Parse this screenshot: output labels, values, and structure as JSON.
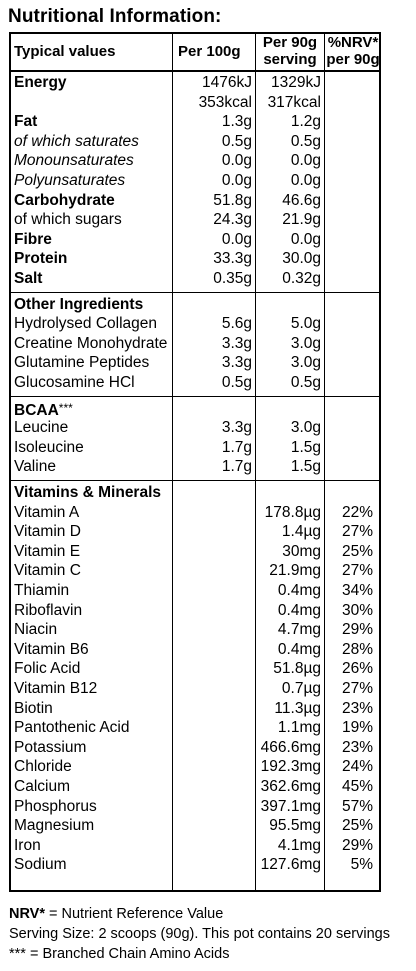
{
  "title": "Nutritional Information:",
  "headers": {
    "typical": "Typical values",
    "per100_line1": "Per 100g",
    "serving_line1": "Per 90g",
    "serving_line2": "serving",
    "nrv_line1": "%NRV*",
    "nrv_line2": "per 90g"
  },
  "macros": [
    {
      "label": "Energy",
      "per100": "1476kJ",
      "serving": "1329kJ",
      "style": "bold"
    },
    {
      "label": "",
      "per100": "353kcal",
      "serving": "317kcal",
      "style": "normal"
    },
    {
      "label": "Fat",
      "per100": "1.3g",
      "serving": "1.2g",
      "style": "bold"
    },
    {
      "label": "of which saturates",
      "per100": "0.5g",
      "serving": "0.5g",
      "style": "italic"
    },
    {
      "label": "Monounsaturates",
      "per100": "0.0g",
      "serving": "0.0g",
      "style": "italic"
    },
    {
      "label": "Polyunsaturates",
      "per100": "0.0g",
      "serving": "0.0g",
      "style": "italic"
    },
    {
      "label": "Carbohydrate",
      "per100": "51.8g",
      "serving": "46.6g",
      "style": "bold"
    },
    {
      "label": "of which sugars",
      "per100": "24.3g",
      "serving": "21.9g",
      "style": "normal"
    },
    {
      "label": "Fibre",
      "per100": "0.0g",
      "serving": "0.0g",
      "style": "bold"
    },
    {
      "label": "Protein",
      "per100": "33.3g",
      "serving": "30.0g",
      "style": "bold"
    },
    {
      "label": "Salt",
      "per100": "0.35g",
      "serving": "0.32g",
      "style": "bold"
    }
  ],
  "other": {
    "heading": "Other Ingredients",
    "rows": [
      {
        "label": "Hydrolysed Collagen",
        "per100": "5.6g",
        "serving": "5.0g"
      },
      {
        "label": "Creatine Monohydrate",
        "per100": "3.3g",
        "serving": "3.0g"
      },
      {
        "label": "Glutamine Peptides",
        "per100": "3.3g",
        "serving": "3.0g"
      },
      {
        "label": "Glucosamine HCl",
        "per100": "0.5g",
        "serving": "0.5g"
      }
    ]
  },
  "bcaa": {
    "heading": "BCAA",
    "heading_suffix": "***",
    "rows": [
      {
        "label": "Leucine",
        "per100": "3.3g",
        "serving": "3.0g"
      },
      {
        "label": "Isoleucine",
        "per100": "1.7g",
        "serving": "1.5g"
      },
      {
        "label": "Valine",
        "per100": "1.7g",
        "serving": "1.5g"
      }
    ]
  },
  "vitamins": {
    "heading": "Vitamins & Minerals",
    "rows": [
      {
        "label": "Vitamin A",
        "serving": "178.8µg",
        "nrv": "22%"
      },
      {
        "label": "Vitamin D",
        "serving": "1.4µg",
        "nrv": "27%"
      },
      {
        "label": "Vitamin E",
        "serving": "30mg",
        "nrv": "25%"
      },
      {
        "label": "Vitamin C",
        "serving": "21.9mg",
        "nrv": "27%"
      },
      {
        "label": "Thiamin",
        "serving": "0.4mg",
        "nrv": "34%"
      },
      {
        "label": "Riboflavin",
        "serving": "0.4mg",
        "nrv": "30%"
      },
      {
        "label": "Niacin",
        "serving": "4.7mg",
        "nrv": "29%"
      },
      {
        "label": "Vitamin B6",
        "serving": "0.4mg",
        "nrv": "28%"
      },
      {
        "label": "Folic Acid",
        "serving": "51.8µg",
        "nrv": "26%"
      },
      {
        "label": "Vitamin B12",
        "serving": "0.7µg",
        "nrv": "27%"
      },
      {
        "label": "Biotin",
        "serving": "11.3µg",
        "nrv": "23%"
      },
      {
        "label": "Pantothenic Acid",
        "serving": "1.1mg",
        "nrv": "19%"
      },
      {
        "label": "Potassium",
        "serving": "466.6mg",
        "nrv": "23%"
      },
      {
        "label": "Chloride",
        "serving": "192.3mg",
        "nrv": "24%"
      },
      {
        "label": "Calcium",
        "serving": "362.6mg",
        "nrv": "45%"
      },
      {
        "label": "Phosphorus",
        "serving": "397.1mg",
        "nrv": "57%"
      },
      {
        "label": "Magnesium",
        "serving": "95.5mg",
        "nrv": "25%"
      },
      {
        "label": "Iron",
        "serving": "4.1mg",
        "nrv": "29%"
      },
      {
        "label": "Sodium",
        "serving": "127.6mg",
        "nrv": "5%"
      }
    ]
  },
  "footer": {
    "nrv_term": "NRV*",
    "nrv_def": " = Nutrient Reference Value",
    "serving_note": "Serving Size: 2 scoops (90g). This pot contains 20 servings",
    "bcaa_note": "*** = Branched Chain Amino Acids"
  }
}
